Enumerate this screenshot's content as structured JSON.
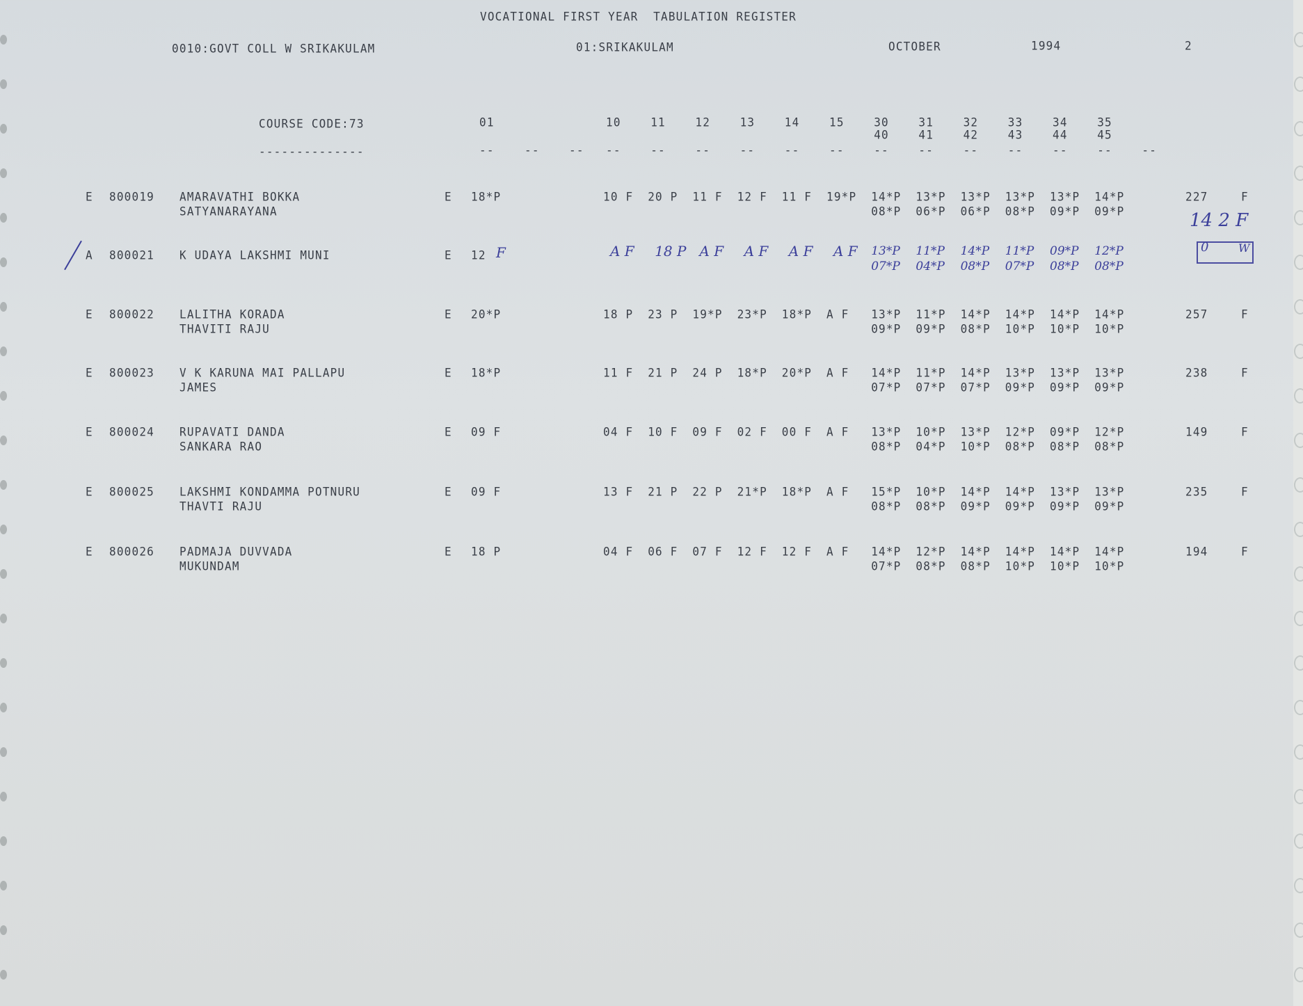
{
  "header": {
    "title": "VOCATIONAL FIRST YEAR  TABULATION REGISTER",
    "college": "0010:GOVT COLL W SRIKAKULAM",
    "district": "01:SRIKAKULAM",
    "month": "OCTOBER",
    "year": "1994",
    "page": "2"
  },
  "columns": {
    "course_code": "COURSE CODE:73",
    "underline": "--------------",
    "sub01": "01",
    "marks": [
      "10",
      "11",
      "12",
      "13",
      "14",
      "15"
    ],
    "parts_top": [
      "30",
      "31",
      "32",
      "33",
      "34",
      "35"
    ],
    "parts_bottom": [
      "40",
      "41",
      "42",
      "43",
      "44",
      "45"
    ],
    "dash": "--"
  },
  "rows": [
    {
      "flag": "E",
      "id": "800019",
      "name1": "AMARAVATHI BOKKA",
      "name2": "SATYANARAYANA",
      "lang": "E",
      "sub01": "18*P",
      "marks": [
        "10 F",
        "20 P",
        "11 F",
        "12 F",
        "11 F",
        "19*P"
      ],
      "parts1": [
        "14*P",
        "13*P",
        "13*P",
        "13*P",
        "13*P",
        "14*P"
      ],
      "parts2": [
        "08*P",
        "06*P",
        "06*P",
        "08*P",
        "09*P",
        "09*P"
      ],
      "total": "227",
      "result": "F"
    },
    {
      "flag": "A",
      "id": "800021",
      "name1": "K UDAYA LAKSHMI MUNI",
      "name2": "",
      "lang": "E",
      "sub01": "12",
      "sub01_hand": "F",
      "marks_hand": [
        "A F",
        "18 P",
        "A F",
        "A F",
        "A F",
        "A F"
      ],
      "parts1_hand": [
        "13*P",
        "11*P",
        "14*P",
        "11*P",
        "09*P",
        "12*P"
      ],
      "parts2_hand": [
        "07*P",
        "04*P",
        "08*P",
        "07*P",
        "08*P",
        "08*P"
      ],
      "total_hand": "14 2 F",
      "box_hand": "0",
      "box_result": "W"
    },
    {
      "flag": "E",
      "id": "800022",
      "name1": "LALITHA KORADA",
      "name2": "THAVITI RAJU",
      "lang": "E",
      "sub01": "20*P",
      "marks": [
        "18 P",
        "23 P",
        "19*P",
        "23*P",
        "18*P",
        "A F"
      ],
      "parts1": [
        "13*P",
        "11*P",
        "14*P",
        "14*P",
        "14*P",
        "14*P"
      ],
      "parts2": [
        "09*P",
        "09*P",
        "08*P",
        "10*P",
        "10*P",
        "10*P"
      ],
      "total": "257",
      "result": "F"
    },
    {
      "flag": "E",
      "id": "800023",
      "name1": "V K KARUNA MAI PALLAPU",
      "name2": "JAMES",
      "lang": "E",
      "sub01": "18*P",
      "marks": [
        "11 F",
        "21 P",
        "24 P",
        "18*P",
        "20*P",
        "A F"
      ],
      "parts1": [
        "14*P",
        "11*P",
        "14*P",
        "13*P",
        "13*P",
        "13*P"
      ],
      "parts2": [
        "07*P",
        "07*P",
        "07*P",
        "09*P",
        "09*P",
        "09*P"
      ],
      "total": "238",
      "result": "F"
    },
    {
      "flag": "E",
      "id": "800024",
      "name1": "RUPAVATI DANDA",
      "name2": "SANKARA RAO",
      "lang": "E",
      "sub01": "09 F",
      "marks": [
        "04 F",
        "10 F",
        "09 F",
        "02 F",
        "00 F",
        "A F"
      ],
      "parts1": [
        "13*P",
        "10*P",
        "13*P",
        "12*P",
        "09*P",
        "12*P"
      ],
      "parts2": [
        "08*P",
        "04*P",
        "10*P",
        "08*P",
        "08*P",
        "08*P"
      ],
      "total": "149",
      "result": "F"
    },
    {
      "flag": "E",
      "id": "800025",
      "name1": "LAKSHMI KONDAMMA POTNURU",
      "name2": "THAVTI RAJU",
      "lang": "E",
      "sub01": "09 F",
      "marks": [
        "13 F",
        "21 P",
        "22 P",
        "21*P",
        "18*P",
        "A F"
      ],
      "parts1": [
        "15*P",
        "10*P",
        "14*P",
        "14*P",
        "13*P",
        "13*P"
      ],
      "parts2": [
        "08*P",
        "08*P",
        "09*P",
        "09*P",
        "09*P",
        "09*P"
      ],
      "total": "235",
      "result": "F"
    },
    {
      "flag": "E",
      "id": "800026",
      "name1": "PADMAJA DUVVADA",
      "name2": "MUKUNDAM",
      "lang": "E",
      "sub01": "18 P",
      "marks": [
        "04 F",
        "06 F",
        "07 F",
        "12 F",
        "12 F",
        "A F"
      ],
      "parts1": [
        "14*P",
        "12*P",
        "14*P",
        "14*P",
        "14*P",
        "14*P"
      ],
      "parts2": [
        "07*P",
        "08*P",
        "08*P",
        "10*P",
        "10*P",
        "10*P"
      ],
      "total": "194",
      "result": "F"
    }
  ],
  "colors": {
    "ink": "#3a3f48",
    "pen": "#3b3f9a",
    "paper": "#d9dde0"
  }
}
